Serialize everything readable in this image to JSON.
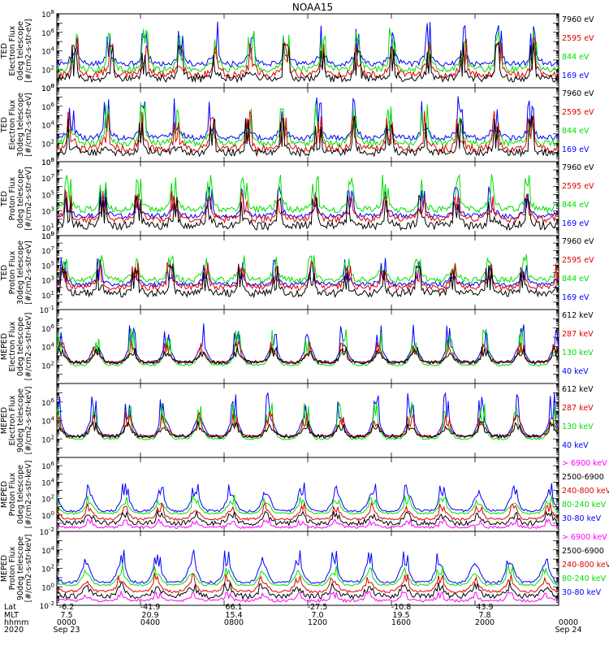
{
  "figure_title": "NOAA15",
  "colors": {
    "black": "#000000",
    "red": "#e00000",
    "green": "#00e000",
    "blue": "#0000ff",
    "magenta": "#ff00ff"
  },
  "footer": {
    "row_labels": [
      "Lat",
      "MLT",
      "hhmm",
      "2020"
    ],
    "columns": [
      {
        "lat": "-6.2",
        "mlt": "7.5",
        "hhmm": "0000",
        "date": "Sep 23"
      },
      {
        "lat": "-41.9",
        "mlt": "20.9",
        "hhmm": "0400",
        "date": ""
      },
      {
        "lat": "66.1",
        "mlt": "15.4",
        "hhmm": "0800",
        "date": ""
      },
      {
        "lat": "-27.5",
        "mlt": "7.0",
        "hhmm": "1200",
        "date": ""
      },
      {
        "lat": "-10.8",
        "mlt": "19.5",
        "hhmm": "1600",
        "date": ""
      },
      {
        "lat": "43.9",
        "mlt": "7.8",
        "hhmm": "2000",
        "date": ""
      },
      {
        "lat": "",
        "mlt": "",
        "hhmm": "0000",
        "date": "Sep 24"
      }
    ]
  },
  "chart_data": [
    {
      "type": "line",
      "ylabel": [
        "TED",
        "Electron Flux",
        "0deg telescope",
        "[#/cm2-s-str-eV]"
      ],
      "yscale": "log",
      "ylim": [
        1,
        100000000.0
      ],
      "yticks": [
        "10^0",
        "10^2",
        "10^4",
        "10^6",
        "10^8"
      ],
      "series": [
        {
          "name": "7960 eV",
          "color": "#000000",
          "base": 1.0,
          "amp": 0.6,
          "noise": 0.8,
          "spike": 5.0
        },
        {
          "name": "2595 eV",
          "color": "#e00000",
          "base": 1.4,
          "amp": 1.0,
          "noise": 0.8,
          "spike": 5.5
        },
        {
          "name": "844 eV",
          "color": "#00e000",
          "base": 2.0,
          "amp": 1.2,
          "noise": 0.7,
          "spike": 6.5
        },
        {
          "name": "169 eV",
          "color": "#0000ff",
          "base": 2.6,
          "amp": 1.0,
          "noise": 0.6,
          "spike": 7.2
        }
      ]
    },
    {
      "type": "line",
      "ylabel": [
        "TED",
        "Electron Flux",
        "30deg telescope",
        "[#/cm2-s-str-eV]"
      ],
      "yscale": "log",
      "ylim": [
        1,
        100000000.0
      ],
      "yticks": [
        "10^0",
        "10^2",
        "10^4",
        "10^6",
        "10^8"
      ],
      "series": [
        {
          "name": "7960 eV",
          "color": "#000000",
          "base": 1.0,
          "amp": 0.6,
          "noise": 0.8,
          "spike": 5.0
        },
        {
          "name": "2595 eV",
          "color": "#e00000",
          "base": 1.4,
          "amp": 1.0,
          "noise": 0.8,
          "spike": 5.5
        },
        {
          "name": "844 eV",
          "color": "#00e000",
          "base": 2.0,
          "amp": 1.2,
          "noise": 0.7,
          "spike": 6.5
        },
        {
          "name": "169 eV",
          "color": "#0000ff",
          "base": 2.6,
          "amp": 1.0,
          "noise": 0.6,
          "spike": 7.2
        }
      ]
    },
    {
      "type": "line",
      "ylabel": [
        "TED",
        "Proton Flux",
        "0deg telescope",
        "[#/cm2-s-str-eV]"
      ],
      "yscale": "log",
      "ylim": [
        1,
        1000000000.0
      ],
      "yticks": [
        "10^0",
        "10^1",
        "10^3",
        "10^5",
        "10^7",
        "10^9"
      ],
      "series": [
        {
          "name": "7960 eV",
          "color": "#000000",
          "base": 1.2,
          "amp": 0.8,
          "noise": 1.0,
          "spike": 5.0
        },
        {
          "name": "2595 eV",
          "color": "#e00000",
          "base": 2.0,
          "amp": 1.0,
          "noise": 0.8,
          "spike": 5.5
        },
        {
          "name": "844 eV",
          "color": "#00e000",
          "base": 3.2,
          "amp": 1.2,
          "noise": 0.8,
          "spike": 7.5
        },
        {
          "name": "169 eV",
          "color": "#0000ff",
          "base": 2.4,
          "amp": 0.8,
          "noise": 0.6,
          "spike": 6.0
        }
      ]
    },
    {
      "type": "line",
      "ylabel": [
        "TED",
        "Proton Flux",
        "30deg telescope",
        "[#/cm2-s-str-eV]"
      ],
      "yscale": "log",
      "ylim": [
        0.1,
        1000000000.0
      ],
      "yticks": [
        "10^-1",
        "10^1",
        "10^3",
        "10^5",
        "10^7",
        "10^9"
      ],
      "series": [
        {
          "name": "7960 eV",
          "color": "#000000",
          "base": 1.2,
          "amp": 0.8,
          "noise": 1.0,
          "spike": 5.0
        },
        {
          "name": "2595 eV",
          "color": "#e00000",
          "base": 2.0,
          "amp": 1.0,
          "noise": 0.8,
          "spike": 5.5
        },
        {
          "name": "844 eV",
          "color": "#00e000",
          "base": 3.0,
          "amp": 1.2,
          "noise": 0.8,
          "spike": 6.5
        },
        {
          "name": "169 eV",
          "color": "#0000ff",
          "base": 2.4,
          "amp": 0.8,
          "noise": 0.6,
          "spike": 6.0
        }
      ]
    },
    {
      "type": "line",
      "ylabel": [
        "MEPED",
        "Electron Flux",
        "0deg telescope",
        "[#/cm2-s-str-keV]"
      ],
      "yscale": "log",
      "ylim": [
        1,
        100000000.0
      ],
      "yticks": [
        "10^2",
        "10^4",
        "10^6"
      ],
      "series": [
        {
          "name": "612 keV",
          "color": "#000000",
          "base": 2.3,
          "amp": 0.8,
          "noise": 0.4,
          "spike": 4.0
        },
        {
          "name": "287 keV",
          "color": "#e00000",
          "base": 2.3,
          "amp": 1.0,
          "noise": 0.3,
          "spike": 4.5
        },
        {
          "name": "130 keV",
          "color": "#00e000",
          "base": 2.0,
          "amp": 1.4,
          "noise": 0.2,
          "spike": 6.0
        },
        {
          "name": "40 keV",
          "color": "#0000ff",
          "base": 2.3,
          "amp": 1.8,
          "noise": 0.2,
          "spike": 6.5
        }
      ]
    },
    {
      "type": "line",
      "ylabel": [
        "MEPED",
        "Electron Flux",
        "90deg telescope",
        "[#/cm2-s-str-keV]"
      ],
      "yscale": "log",
      "ylim": [
        1,
        100000000.0
      ],
      "yticks": [
        "10^2",
        "10^4",
        "10^6"
      ],
      "series": [
        {
          "name": "612 keV",
          "color": "#000000",
          "base": 2.3,
          "amp": 0.8,
          "noise": 0.4,
          "spike": 4.0
        },
        {
          "name": "287 keV",
          "color": "#e00000",
          "base": 2.3,
          "amp": 1.2,
          "noise": 0.3,
          "spike": 5.0
        },
        {
          "name": "130 keV",
          "color": "#00e000",
          "base": 2.0,
          "amp": 1.6,
          "noise": 0.2,
          "spike": 6.0
        },
        {
          "name": "40 keV",
          "color": "#0000ff",
          "base": 2.3,
          "amp": 2.0,
          "noise": 0.2,
          "spike": 7.0
        }
      ]
    },
    {
      "type": "line",
      "ylabel": [
        "MEPED",
        "Proton Flux",
        "0deg telescope",
        "[#/cm2-s-str-keV]"
      ],
      "yscale": "log",
      "ylim": [
        0.01,
        10000000.0
      ],
      "yticks": [
        "10^-2",
        "10^0",
        "10^2",
        "10^4",
        "10^6"
      ],
      "series": [
        {
          "name": "> 6900 keV",
          "color": "#ff00ff",
          "base": -1.5,
          "amp": 0.4,
          "noise": 0.3,
          "spike": -0.5
        },
        {
          "name": "2500-6900",
          "color": "#000000",
          "base": -1.0,
          "amp": 0.8,
          "noise": 0.6,
          "spike": 0.5
        },
        {
          "name": "240-800 keV",
          "color": "#e00000",
          "base": -0.5,
          "amp": 1.0,
          "noise": 0.3,
          "spike": 1.5
        },
        {
          "name": "80-240 keV",
          "color": "#00e000",
          "base": 0.2,
          "amp": 1.2,
          "noise": 0.2,
          "spike": 2.5
        },
        {
          "name": "30-80 keV",
          "color": "#0000ff",
          "base": 0.5,
          "amp": 2.0,
          "noise": 0.3,
          "spike": 4.0
        }
      ]
    },
    {
      "type": "line",
      "ylabel": [
        "MEPED",
        "Proton Flux",
        "90deg telescope",
        "[#/cm2-s-str-keV]"
      ],
      "yscale": "log",
      "ylim": [
        0.01,
        1000000.0
      ],
      "yticks": [
        "10^-2",
        "10^0",
        "10^2",
        "10^4"
      ],
      "series": [
        {
          "name": "> 6900 keV",
          "color": "#ff00ff",
          "base": -1.5,
          "amp": 0.4,
          "noise": 0.3,
          "spike": -0.5
        },
        {
          "name": "2500-6900",
          "color": "#000000",
          "base": -1.0,
          "amp": 0.8,
          "noise": 0.6,
          "spike": 0.5
        },
        {
          "name": "240-800 keV",
          "color": "#e00000",
          "base": -0.5,
          "amp": 1.0,
          "noise": 0.3,
          "spike": 1.5
        },
        {
          "name": "80-240 keV",
          "color": "#00e000",
          "base": 0.2,
          "amp": 1.2,
          "noise": 0.2,
          "spike": 2.5
        },
        {
          "name": "30-80 keV",
          "color": "#0000ff",
          "base": 0.5,
          "amp": 2.0,
          "noise": 0.3,
          "spike": 4.0
        }
      ]
    }
  ]
}
